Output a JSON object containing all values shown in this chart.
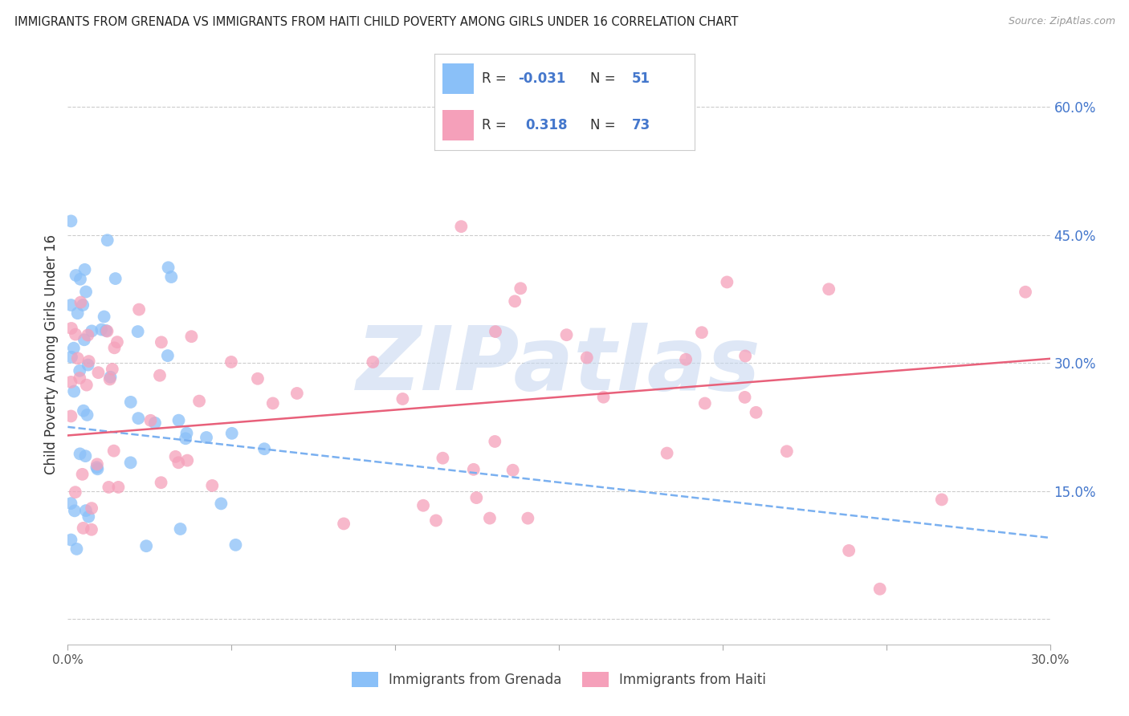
{
  "title": "IMMIGRANTS FROM GRENADA VS IMMIGRANTS FROM HAITI CHILD POVERTY AMONG GIRLS UNDER 16 CORRELATION CHART",
  "source": "Source: ZipAtlas.com",
  "ylabel": "Child Poverty Among Girls Under 16",
  "xlim": [
    0.0,
    0.3
  ],
  "ylim": [
    -0.03,
    0.65
  ],
  "grenada_R": -0.031,
  "grenada_N": 51,
  "haiti_R": 0.318,
  "haiti_N": 73,
  "grenada_color": "#8ac0f8",
  "haiti_color": "#f5a0ba",
  "grenada_line_color": "#7ab0f0",
  "haiti_line_color": "#e8607a",
  "background_color": "#ffffff",
  "grid_color": "#cccccc",
  "watermark_text": "ZIPatlas",
  "watermark_color": "#c8d8f0",
  "right_ytick_color": "#4477cc",
  "title_color": "#222222",
  "source_color": "#999999",
  "grenada_line_start_y": 0.225,
  "grenada_line_end_y": 0.095,
  "haiti_line_start_y": 0.215,
  "haiti_line_end_y": 0.305
}
